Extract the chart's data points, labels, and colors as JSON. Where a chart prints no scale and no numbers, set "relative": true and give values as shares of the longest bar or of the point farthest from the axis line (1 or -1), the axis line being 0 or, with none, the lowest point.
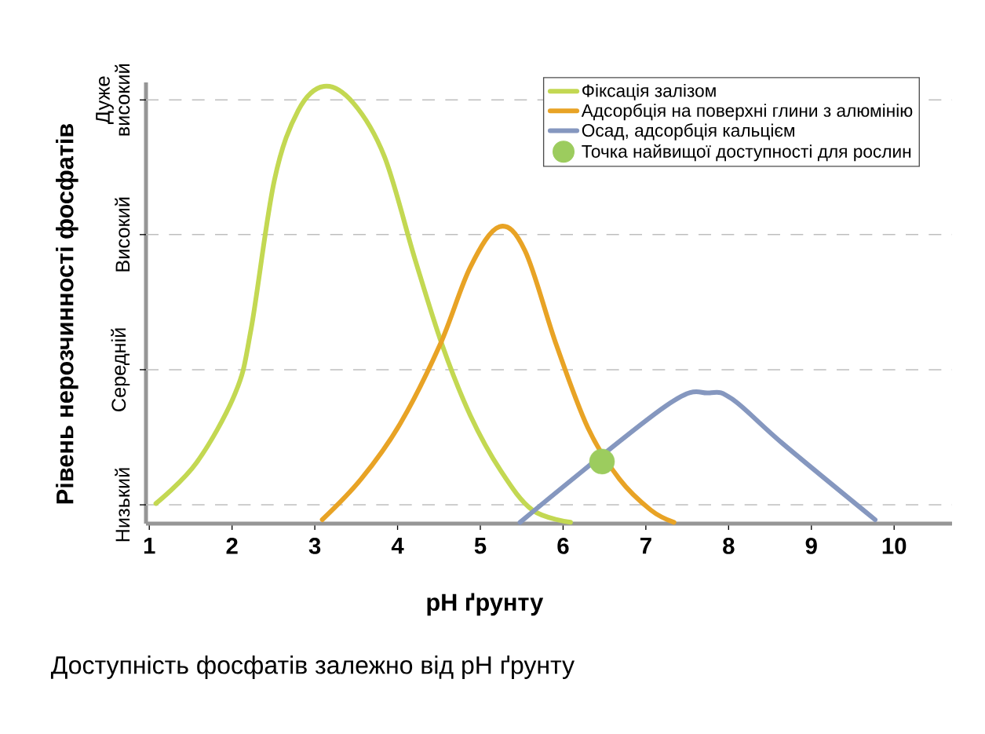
{
  "chart_data": {
    "type": "line",
    "title": "Доступність фосфатів залежно від pH ґрунту",
    "xlabel": "pH ґрунту",
    "ylabel": "Рівень нерозчинності фосфатів",
    "xlim": [
      0.96,
      10.7
    ],
    "xticks": [
      1,
      2,
      3,
      4,
      5,
      6,
      7,
      8,
      9,
      10
    ],
    "relative": true,
    "legend": "top right",
    "ref_lines": [
      {
        "axis": "y",
        "value": 0.043,
        "label": "Низький",
        "color": "#bebebe",
        "line_style": "dashed"
      },
      {
        "axis": "y",
        "value": 0.352,
        "label": "Середній",
        "color": "#bebebe",
        "line_style": "dashed"
      },
      {
        "axis": "y",
        "value": 0.661,
        "label": "Високий",
        "color": "#bebebe",
        "line_style": "dashed"
      },
      {
        "axis": "y",
        "value": 0.969,
        "label": "Дуже високий",
        "color": "#bebebe",
        "line_style": "dashed"
      }
    ],
    "series": [
      {
        "name": "Фіксація залізом",
        "color": "#c3d852",
        "x": [
          1.08,
          1.57,
          2.04,
          2.23,
          2.51,
          2.8,
          3.11,
          3.46,
          3.84,
          4.21,
          4.54,
          4.88,
          5.25,
          5.63,
          6.09
        ],
        "values": [
          0.046,
          0.139,
          0.299,
          0.445,
          0.784,
          0.945,
          1.0,
          0.963,
          0.84,
          0.605,
          0.408,
          0.247,
          0.12,
          0.031,
          0.003
        ]
      },
      {
        "name": "Адсорбція на поверхні глини з алюмінію",
        "color": "#e8a325",
        "x": [
          3.09,
          3.56,
          4.03,
          4.51,
          4.88,
          5.23,
          5.54,
          5.92,
          6.3,
          6.68,
          7.06,
          7.34
        ],
        "values": [
          0.009,
          0.102,
          0.228,
          0.408,
          0.587,
          0.679,
          0.624,
          0.408,
          0.219,
          0.102,
          0.031,
          0.003
        ]
      },
      {
        "name": "Осад, адсорбція кальцієм",
        "color": "#8597bf",
        "x": [
          5.48,
          7.24,
          7.76,
          8.05,
          8.66,
          9.77
        ],
        "values": [
          0.003,
          0.269,
          0.299,
          0.284,
          0.182,
          0.009
        ]
      },
      {
        "name": "Точка найвищої доступності для рослин",
        "type": "scatter",
        "marker": "circle",
        "color": "#9ccc5e",
        "x": [
          6.47
        ],
        "values": [
          0.142
        ]
      }
    ]
  }
}
